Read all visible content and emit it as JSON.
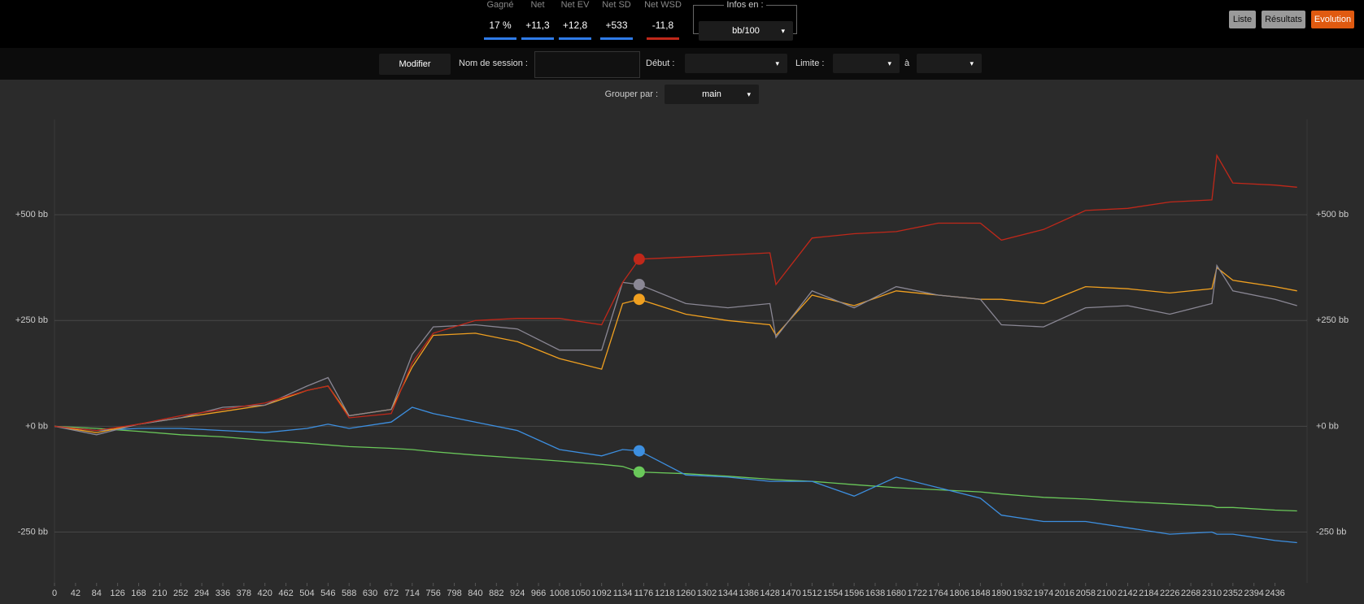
{
  "header": {
    "stats": [
      {
        "label": "Gagné",
        "value": "17 %",
        "color": "#2f7be8"
      },
      {
        "label": "Net",
        "value": "+11,3",
        "color": "#2f7be8"
      },
      {
        "label": "Net EV",
        "value": "+12,8",
        "color": "#2f7be8"
      },
      {
        "label": "Net SD",
        "value": "+533",
        "color": "#2f7be8"
      },
      {
        "label": "Net WSD",
        "value": "-11,8",
        "color": "#c0281a"
      }
    ],
    "infos_label": "Infos en :",
    "infos_value": "bb/100",
    "buttons": [
      "Liste",
      "Résultats",
      "Evolution"
    ]
  },
  "toolbar": {
    "modify": "Modifier",
    "session_label": "Nom de session :",
    "start_label": "Début :",
    "limit_label": "Limite :",
    "to_label": "à",
    "group_label": "Grouper par :",
    "group_value": "main"
  },
  "chart_data": {
    "type": "line",
    "x": [
      0,
      84,
      168,
      252,
      336,
      420,
      504,
      546,
      588,
      672,
      714,
      756,
      840,
      924,
      1008,
      1092,
      1134,
      1167,
      1260,
      1344,
      1428,
      1440,
      1512,
      1596,
      1680,
      1764,
      1848,
      1890,
      1974,
      2058,
      2142,
      2226,
      2310,
      2320,
      2352,
      2436,
      2480
    ],
    "xlim": [
      0,
      2500
    ],
    "xticks": [
      0,
      42,
      84,
      126,
      168,
      210,
      252,
      294,
      336,
      378,
      420,
      462,
      504,
      546,
      588,
      630,
      672,
      714,
      756,
      798,
      840,
      882,
      924,
      966,
      1008,
      1050,
      1092,
      1134,
      1176,
      1218,
      1260,
      1302,
      1344,
      1386,
      1428,
      1470,
      1512,
      1554,
      1596,
      1638,
      1680,
      1722,
      1764,
      1806,
      1848,
      1890,
      1932,
      1974,
      2016,
      2058,
      2100,
      2142,
      2184,
      2226,
      2268,
      2310,
      2352,
      2394,
      2436
    ],
    "ylim": [
      -370,
      725
    ],
    "yticks": [
      {
        "value": -250,
        "label": "-250 bb"
      },
      {
        "value": 0,
        "label": "+0 bb"
      },
      {
        "value": 250,
        "label": "+250 bb"
      },
      {
        "value": 500,
        "label": "+500 bb"
      }
    ],
    "grid": true,
    "highlight_x": 1167,
    "series": [
      {
        "color": "#6ac85a",
        "values": [
          0,
          -5,
          -12,
          -20,
          -25,
          -33,
          -40,
          -44,
          -48,
          -52,
          -55,
          -60,
          -68,
          -75,
          -82,
          -90,
          -95,
          -108,
          -112,
          -118,
          -125,
          -126,
          -130,
          -138,
          -145,
          -150,
          -155,
          -160,
          -168,
          -172,
          -178,
          -183,
          -188,
          -192,
          -192,
          -198,
          -200
        ]
      },
      {
        "color": "#3d8fe0",
        "values": [
          0,
          -10,
          -5,
          -5,
          -10,
          -15,
          -5,
          5,
          -5,
          10,
          45,
          30,
          10,
          -10,
          -55,
          -70,
          -55,
          -58,
          -115,
          -120,
          -130,
          -130,
          -130,
          -165,
          -120,
          -145,
          -170,
          -210,
          -225,
          -225,
          -240,
          -255,
          -250,
          -255,
          -255,
          -270,
          -275
        ]
      },
      {
        "color": "#f0a020",
        "values": [
          0,
          -15,
          5,
          20,
          35,
          50,
          85,
          95,
          25,
          40,
          140,
          215,
          220,
          200,
          160,
          135,
          290,
          300,
          265,
          250,
          240,
          215,
          310,
          285,
          320,
          310,
          300,
          300,
          290,
          330,
          325,
          315,
          325,
          375,
          345,
          330,
          320
        ]
      },
      {
        "color": "#8a8794",
        "values": [
          0,
          -20,
          5,
          20,
          45,
          50,
          95,
          115,
          25,
          40,
          170,
          235,
          240,
          230,
          180,
          180,
          340,
          335,
          290,
          280,
          290,
          210,
          320,
          280,
          330,
          310,
          300,
          240,
          235,
          280,
          285,
          265,
          290,
          380,
          320,
          300,
          285
        ]
      },
      {
        "color": "#c0281a",
        "values": [
          0,
          -10,
          5,
          25,
          40,
          55,
          85,
          95,
          20,
          30,
          150,
          220,
          250,
          255,
          255,
          240,
          340,
          395,
          400,
          405,
          410,
          335,
          445,
          455,
          460,
          480,
          480,
          440,
          465,
          510,
          515,
          530,
          535,
          640,
          575,
          570,
          565
        ]
      }
    ]
  }
}
